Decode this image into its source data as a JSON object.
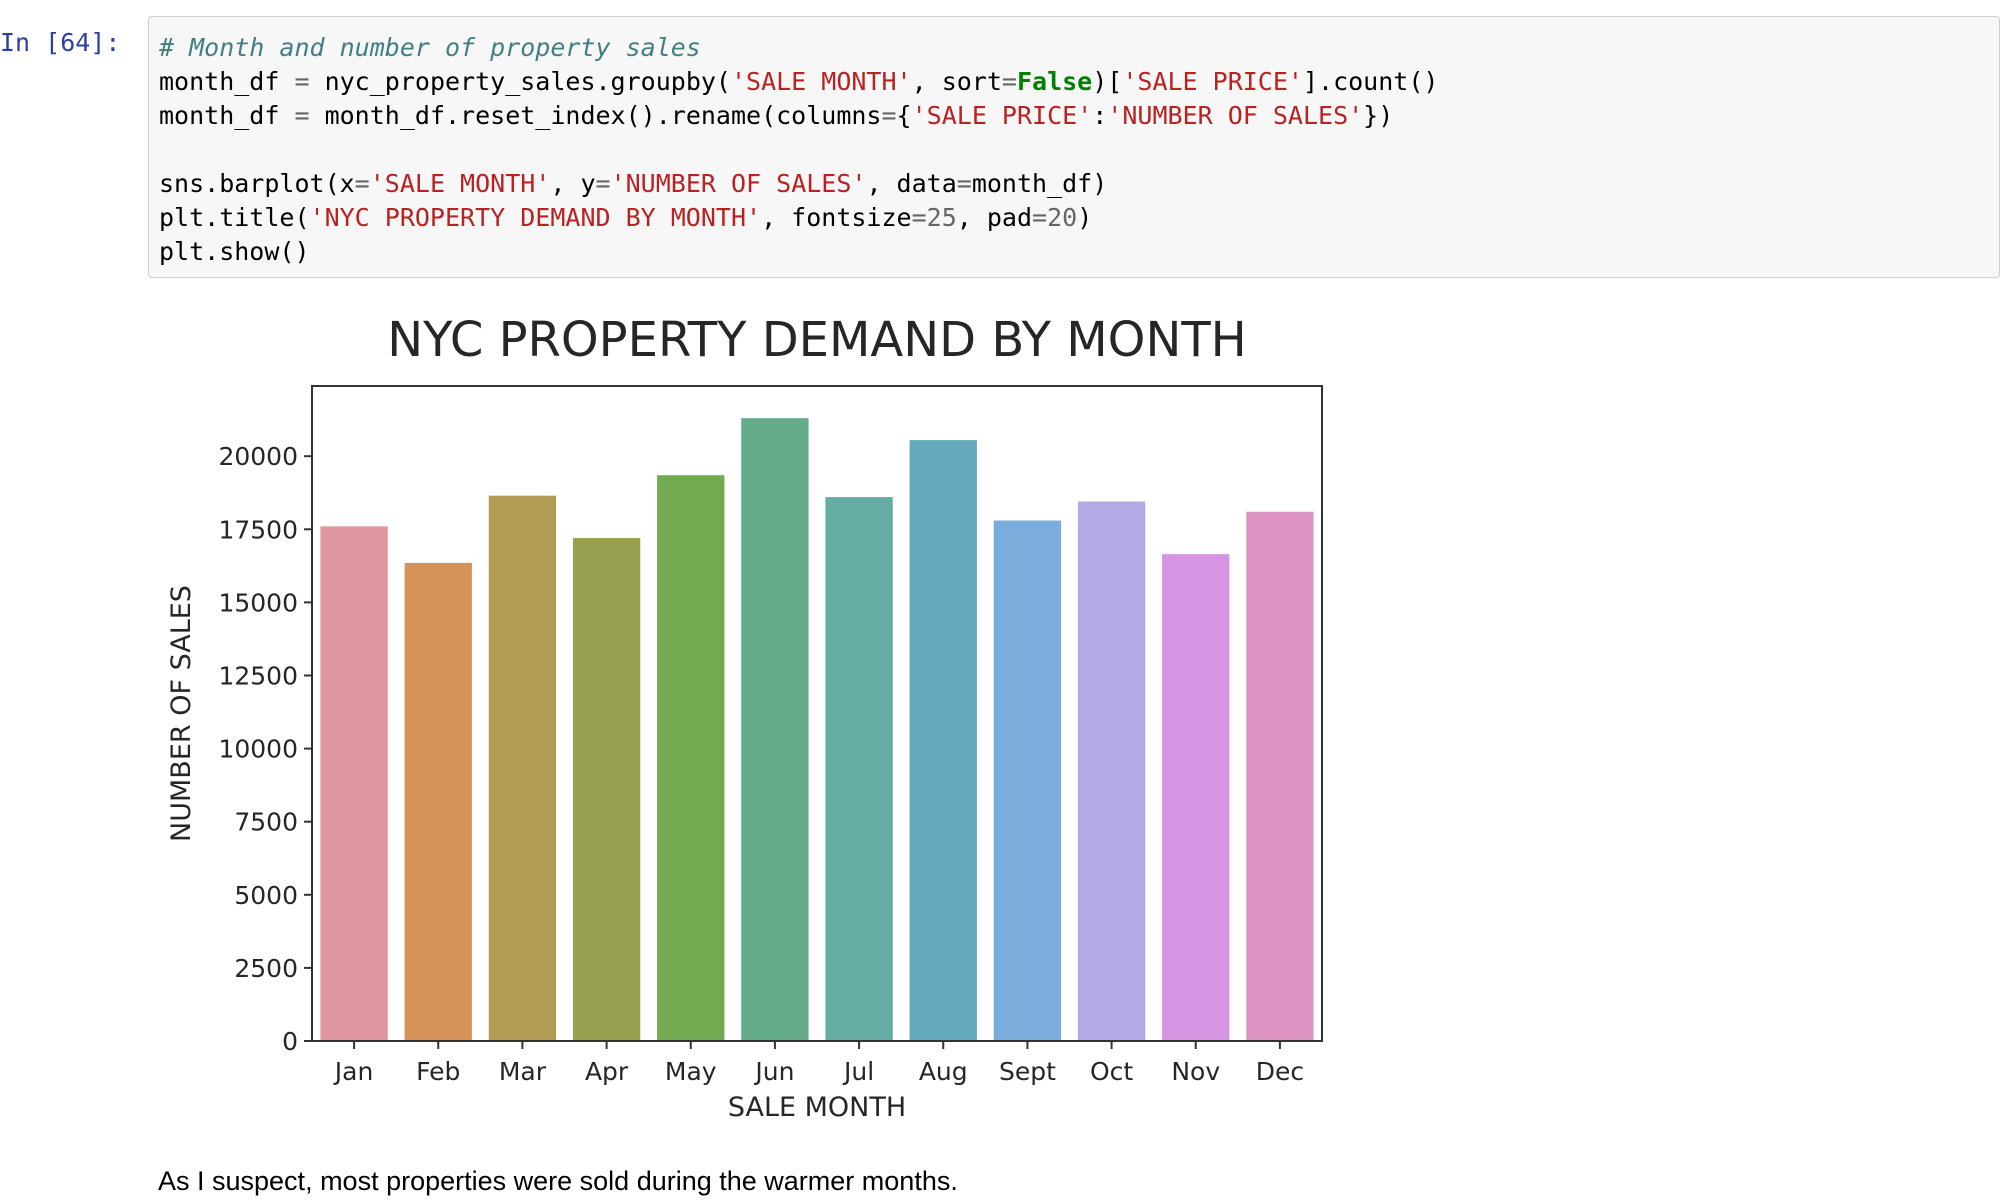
{
  "cell": {
    "prompt": "In [64]:",
    "code_lines": [
      [
        {
          "t": "# Month and number of property sales",
          "c": "c"
        }
      ],
      [
        {
          "t": "month_df ",
          "c": ""
        },
        {
          "t": "=",
          "c": "o"
        },
        {
          "t": " nyc_property_sales.groupby(",
          "c": ""
        },
        {
          "t": "'SALE MONTH'",
          "c": "s"
        },
        {
          "t": ", sort",
          "c": ""
        },
        {
          "t": "=",
          "c": "o"
        },
        {
          "t": "False",
          "c": "k"
        },
        {
          "t": ")[",
          "c": ""
        },
        {
          "t": "'SALE PRICE'",
          "c": "s"
        },
        {
          "t": "].count()",
          "c": ""
        }
      ],
      [
        {
          "t": "month_df ",
          "c": ""
        },
        {
          "t": "=",
          "c": "o"
        },
        {
          "t": " month_df.reset_index().rename(columns",
          "c": ""
        },
        {
          "t": "=",
          "c": "o"
        },
        {
          "t": "{",
          "c": ""
        },
        {
          "t": "'SALE PRICE'",
          "c": "s"
        },
        {
          "t": ":",
          "c": ""
        },
        {
          "t": "'NUMBER OF SALES'",
          "c": "s"
        },
        {
          "t": "})",
          "c": ""
        }
      ],
      [
        {
          "t": " ",
          "c": ""
        }
      ],
      [
        {
          "t": "sns.barplot(x",
          "c": ""
        },
        {
          "t": "=",
          "c": "o"
        },
        {
          "t": "'SALE MONTH'",
          "c": "s"
        },
        {
          "t": ", y",
          "c": ""
        },
        {
          "t": "=",
          "c": "o"
        },
        {
          "t": "'NUMBER OF SALES'",
          "c": "s"
        },
        {
          "t": ", data",
          "c": ""
        },
        {
          "t": "=",
          "c": "o"
        },
        {
          "t": "month_df)",
          "c": ""
        }
      ],
      [
        {
          "t": "plt.title(",
          "c": ""
        },
        {
          "t": "'NYC PROPERTY DEMAND BY MONTH'",
          "c": "s"
        },
        {
          "t": ", fontsize",
          "c": ""
        },
        {
          "t": "=",
          "c": "o"
        },
        {
          "t": "25",
          "c": "o"
        },
        {
          "t": ", pad",
          "c": ""
        },
        {
          "t": "=",
          "c": "o"
        },
        {
          "t": "20",
          "c": "o"
        },
        {
          "t": ")",
          "c": ""
        }
      ],
      [
        {
          "t": "plt.show()",
          "c": ""
        }
      ]
    ]
  },
  "chart_data": {
    "type": "bar",
    "title": "NYC PROPERTY DEMAND BY MONTH",
    "xlabel": "SALE MONTH",
    "ylabel": "NUMBER OF SALES",
    "categories": [
      "Jan",
      "Feb",
      "Mar",
      "Apr",
      "May",
      "Jun",
      "Jul",
      "Aug",
      "Sept",
      "Oct",
      "Nov",
      "Dec"
    ],
    "values": [
      17600,
      16350,
      18650,
      17200,
      19350,
      21300,
      18600,
      20550,
      17800,
      18450,
      16650,
      18100
    ],
    "colors": [
      "#e1979f",
      "#d59359",
      "#b39c53",
      "#98a050",
      "#72ab52",
      "#65ad8a",
      "#64aca4",
      "#65a9bc",
      "#7aaddc",
      "#b4a8e6",
      "#d595e3",
      "#dd94c3"
    ],
    "ylim": [
      0,
      22400
    ],
    "yticks": [
      0,
      2500,
      5000,
      7500,
      10000,
      12500,
      15000,
      17500,
      20000
    ],
    "grid": false,
    "legend": "none"
  },
  "markdown": {
    "text": "As I suspect, most properties were sold during the warmer months."
  }
}
